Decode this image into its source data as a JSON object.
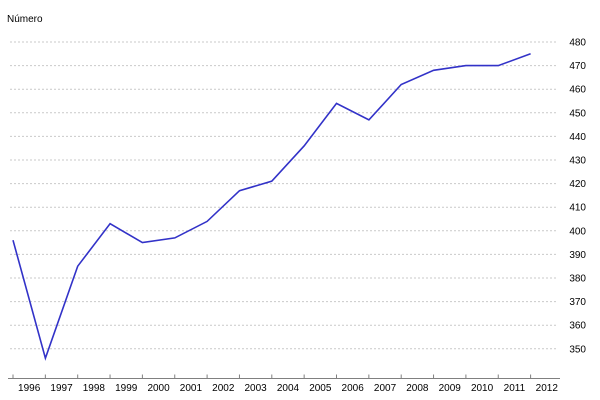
{
  "chart_data": {
    "type": "line",
    "title": "Número",
    "categories": [
      "1996",
      "1997",
      "1998",
      "1999",
      "2000",
      "2001",
      "2002",
      "2003",
      "2004",
      "2005",
      "2006",
      "2007",
      "2008",
      "2009",
      "2010",
      "2011",
      "2012"
    ],
    "series": [
      {
        "name": "Número",
        "values": [
          396,
          346,
          385,
          403,
          395,
          397,
          404,
          417,
          421,
          436,
          454,
          447,
          462,
          468,
          470,
          470,
          475
        ]
      }
    ],
    "xlabel": "",
    "ylabel": "Número",
    "ylabel_position": "top-left",
    "yticks": [
      350,
      360,
      370,
      380,
      390,
      400,
      410,
      420,
      430,
      440,
      450,
      460,
      470,
      480
    ],
    "ytick_side": "right",
    "ylim": [
      350,
      480
    ],
    "grid": "horizontal-dashed",
    "legend": "none",
    "colors": {
      "line": "#3232c8",
      "grid": "#c9c9c9",
      "axis": "#808080",
      "text": "#000000",
      "background": "#ffffff"
    }
  }
}
